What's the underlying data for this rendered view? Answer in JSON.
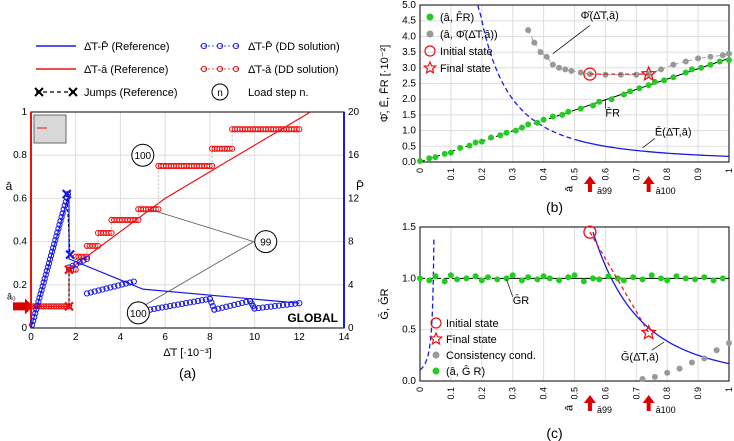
{
  "colors": {
    "blue": "#1a1ae6",
    "red": "#ee1111",
    "green": "#22cc22",
    "gray": "#999999",
    "black": "#111111",
    "arrow": "#dd0000"
  },
  "chart_data": [
    {
      "id": "a",
      "type": "line",
      "caption": "(a)",
      "xlabel": "Δ̄T [·10⁻³]",
      "ylabel_left": "ā",
      "ylabel_right": "P̄",
      "xlim": [
        0,
        14
      ],
      "ylim_left": [
        0,
        1
      ],
      "ylim_right": [
        0,
        20
      ],
      "xticks": [
        0,
        2,
        4,
        6,
        8,
        10,
        12,
        14
      ],
      "yticks_left": [
        0,
        0.2,
        0.4,
        0.6,
        0.8,
        1
      ],
      "yticks_right": [
        0,
        4,
        8,
        12,
        16,
        20
      ],
      "grid": true,
      "watermark": "GLOBAL",
      "a0_label": "ā₀",
      "legend": [
        {
          "label": "Δ̄T-P̄ (Reference)",
          "style": "blue-line"
        },
        {
          "label": "Δ̄T-P̄ (DD solution)",
          "style": "blue-circle"
        },
        {
          "label": "Δ̄T-ā (Reference)",
          "style": "red-line"
        },
        {
          "label": "Δ̄T-ā (DD solution)",
          "style": "red-circle"
        },
        {
          "label": "Jumps (Reference)",
          "style": "jump"
        },
        {
          "label": "Load step n.",
          "style": "badge",
          "badge": "n"
        }
      ],
      "annotations": [
        {
          "text": "100",
          "x": 5.0,
          "y": 0.75
        },
        {
          "text": "99",
          "x": 10.5,
          "y": 0.4
        },
        {
          "text": "100",
          "x": 4.8,
          "y": 0.07
        }
      ],
      "series": {
        "ref_P": {
          "x": [
            0,
            1.7,
            1.7,
            5.0,
            12
          ],
          "y": [
            0,
            12.4,
            6.4,
            3.6,
            2.3
          ]
        },
        "ref_a": {
          "x": [
            0,
            1.7,
            1.7,
            6.0,
            12.5
          ],
          "y": [
            0.1,
            0.1,
            0.27,
            0.6,
            1.0
          ]
        },
        "jumps": [
          {
            "x": [
              1.7,
              1.7
            ],
            "y": [
              0.1,
              0.27
            ]
          },
          {
            "x": [
              1.6,
              1.75
            ],
            "y": [
              0.62,
              0.34
            ]
          }
        ],
        "dd_a_steps": [
          {
            "x0": 0.0,
            "x1": 1.7,
            "y": 0.1
          },
          {
            "x0": 1.7,
            "x1": 2.0,
            "y": 0.27
          },
          {
            "x0": 2.0,
            "x1": 2.5,
            "y": 0.33
          },
          {
            "x0": 2.5,
            "x1": 3.0,
            "y": 0.38
          },
          {
            "x0": 3.0,
            "x1": 3.6,
            "y": 0.44
          },
          {
            "x0": 3.6,
            "x1": 4.8,
            "y": 0.5
          },
          {
            "x0": 4.8,
            "x1": 5.7,
            "y": 0.55
          },
          {
            "x0": 5.7,
            "x1": 8.1,
            "y": 0.75
          },
          {
            "x0": 8.1,
            "x1": 9.0,
            "y": 0.83
          },
          {
            "x0": 9.0,
            "x1": 12.0,
            "y": 0.92
          }
        ],
        "dd_P_segments": [
          {
            "x0": 0.05,
            "x1": 1.65,
            "y0": 0.3,
            "y1": 12.4
          },
          {
            "x0": 1.7,
            "x1": 2.5,
            "y0": 5.6,
            "y1": 6.4
          },
          {
            "x0": 2.5,
            "x1": 4.6,
            "y0": 3.2,
            "y1": 4.3
          },
          {
            "x0": 4.8,
            "x1": 8.0,
            "y0": 1.5,
            "y1": 2.7
          },
          {
            "x0": 8.0,
            "x1": 8.2,
            "y0": 2.7,
            "y1": 1.7
          },
          {
            "x0": 8.2,
            "x1": 9.8,
            "y0": 1.7,
            "y1": 2.5
          },
          {
            "x0": 9.8,
            "x1": 10.0,
            "y0": 2.5,
            "y1": 1.8
          },
          {
            "x0": 10.0,
            "x1": 12.0,
            "y0": 1.8,
            "y1": 2.3
          }
        ]
      }
    },
    {
      "id": "b",
      "type": "scatter",
      "caption": "(b)",
      "ylabel": "Φ̄, Ē, F̄R [·10⁻²]",
      "xlabel": "ā",
      "xlim": [
        0,
        1
      ],
      "ylim": [
        0,
        5
      ],
      "xticks": [
        0,
        0.1,
        0.2,
        0.3,
        0.4,
        0.5,
        0.6,
        0.7,
        0.8,
        0.9,
        1
      ],
      "yticks": [
        0,
        0.5,
        1,
        1.5,
        2,
        2.5,
        3,
        3.5,
        4,
        4.5,
        5
      ],
      "grid": true,
      "legend": [
        {
          "label": "(â, F̂R)",
          "style": "green-dot"
        },
        {
          "label": "(â, Φ̄(Δ̄T,â))",
          "style": "gray-dot"
        },
        {
          "label": "Initial state",
          "style": "red-circle"
        },
        {
          "label": "Final state",
          "style": "red-star"
        }
      ],
      "curve_labels": [
        "Φ̄(Δ̄T,ā)",
        "F̄R",
        "Ē(Δ̄T,ā)"
      ],
      "markers": {
        "a99_x": 0.55,
        "a100_x": 0.74,
        "a99": "ā99",
        "a100": "ā100"
      },
      "initial_state": {
        "x": 0.55,
        "y": 2.8
      },
      "final_state": {
        "x": 0.74,
        "y": 2.8
      },
      "F_R_line": {
        "x": [
          0,
          1
        ],
        "y": [
          0,
          3.3
        ]
      },
      "E_curve_k": 0.18,
      "gray_points": {
        "x": [
          0.35,
          0.37,
          0.39,
          0.41,
          0.43,
          0.45,
          0.47,
          0.49,
          0.52,
          0.55,
          0.6,
          0.65,
          0.7,
          0.74,
          0.78,
          0.82,
          0.86,
          0.9,
          0.94,
          0.98,
          1.0
        ],
        "y": [
          4.2,
          3.8,
          3.5,
          3.35,
          3.1,
          3.0,
          2.95,
          2.9,
          2.85,
          2.8,
          2.78,
          2.78,
          2.78,
          2.8,
          2.95,
          3.1,
          3.2,
          3.3,
          3.35,
          3.4,
          3.45
        ]
      },
      "green_points": {
        "x": [
          0.0,
          0.03,
          0.05,
          0.08,
          0.1,
          0.13,
          0.16,
          0.18,
          0.2,
          0.23,
          0.26,
          0.28,
          0.31,
          0.33,
          0.35,
          0.38,
          0.4,
          0.43,
          0.46,
          0.48,
          0.52,
          0.56,
          0.58,
          0.62,
          0.66,
          0.68,
          0.71,
          0.74,
          0.76,
          0.79,
          0.82,
          0.86,
          0.88,
          0.91,
          0.94,
          0.97,
          1.0
        ],
        "y": [
          0.03,
          0.12,
          0.15,
          0.26,
          0.3,
          0.45,
          0.52,
          0.62,
          0.65,
          0.78,
          0.85,
          0.93,
          1.0,
          1.1,
          1.2,
          1.25,
          1.35,
          1.45,
          1.5,
          1.6,
          1.7,
          1.8,
          1.92,
          2.0,
          2.15,
          2.25,
          2.35,
          2.45,
          2.55,
          2.6,
          2.7,
          2.85,
          2.95,
          3.0,
          3.1,
          3.2,
          3.25
        ]
      }
    },
    {
      "id": "c",
      "type": "scatter",
      "caption": "(c)",
      "ylabel": "Ḡ, ḠR",
      "xlabel": "ā",
      "xlim": [
        0,
        1
      ],
      "ylim": [
        0,
        1.5
      ],
      "xticks": [
        0,
        0.1,
        0.2,
        0.3,
        0.4,
        0.5,
        0.6,
        0.7,
        0.8,
        0.9,
        1
      ],
      "yticks": [
        0,
        0.5,
        1,
        1.5
      ],
      "grid": true,
      "legend": [
        {
          "label": "Initial state",
          "style": "red-circle"
        },
        {
          "label": "Final state",
          "style": "red-star"
        },
        {
          "label": "Consistency cond.",
          "style": "gray-dot"
        },
        {
          "label": "(â, Ĝ R)",
          "style": "green-dot"
        }
      ],
      "curve_labels": [
        "ḠR",
        "Ḡ(Δ̄T,ā)"
      ],
      "markers": {
        "a99_x": 0.55,
        "a100_x": 0.74,
        "a99": "ā99",
        "a100": "ā100"
      },
      "initial_state": {
        "x": 0.55,
        "y": 1.45
      },
      "final_state": {
        "x": 0.74,
        "y": 0.47
      },
      "G_R": 1.0,
      "gray_points": {
        "x": [
          0.72,
          0.76,
          0.8,
          0.84,
          0.88,
          0.92,
          0.96,
          1.0
        ],
        "y": [
          0.02,
          0.04,
          0.08,
          0.12,
          0.18,
          0.22,
          0.3,
          0.37
        ]
      },
      "green_points": {
        "x": [
          0.0,
          0.03,
          0.05,
          0.08,
          0.1,
          0.12,
          0.15,
          0.18,
          0.2,
          0.22,
          0.25,
          0.28,
          0.3,
          0.33,
          0.35,
          0.38,
          0.4,
          0.42,
          0.45,
          0.48,
          0.5,
          0.53,
          0.56,
          0.58,
          0.61,
          0.64,
          0.66,
          0.69,
          0.72,
          0.75,
          0.78,
          0.8,
          0.83,
          0.86,
          0.89,
          0.92,
          0.95,
          0.98
        ],
        "y": [
          1.0,
          0.98,
          1.02,
          0.97,
          1.03,
          0.99,
          1.0,
          1.02,
          0.98,
          1.01,
          0.99,
          1.0,
          1.03,
          0.98,
          1.01,
          0.99,
          1.02,
          1.0,
          0.98,
          1.01,
          1.03,
          0.97,
          1.0,
          0.99,
          1.02,
          1.0,
          0.98,
          1.01,
          0.99,
          1.03,
          1.0,
          0.98,
          1.02,
          1.0,
          0.99,
          1.01,
          0.98,
          1.0
        ]
      }
    }
  ]
}
